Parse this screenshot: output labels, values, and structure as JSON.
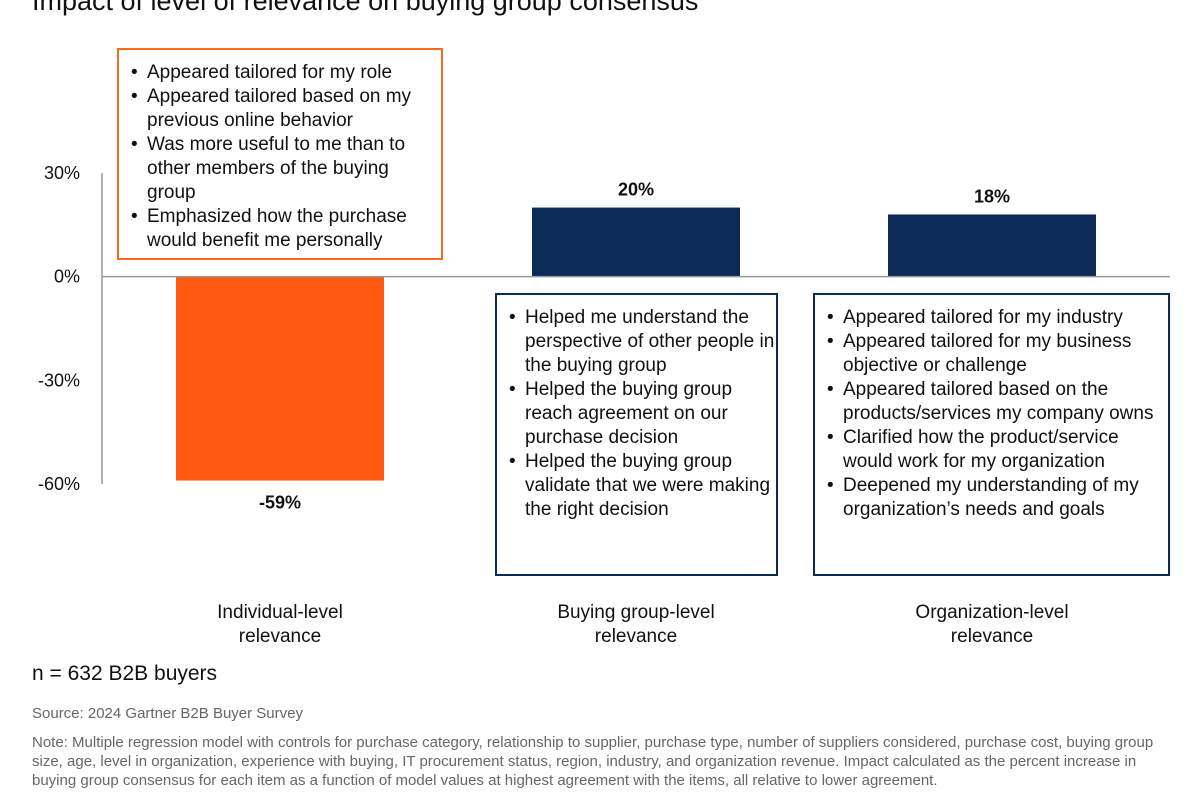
{
  "title": "Impact of level of relevance on buying group consensus",
  "colors": {
    "negative": "#ff5a0f",
    "positive": "#0b2a55",
    "axis": "#999999"
  },
  "chart_data": {
    "type": "bar",
    "categories": [
      [
        "Individual-level",
        "relevance"
      ],
      [
        "Buying group-level",
        "relevance"
      ],
      [
        "Organization-level",
        "relevance"
      ]
    ],
    "values": [
      -59,
      20,
      18
    ],
    "value_labels": [
      "-59%",
      "20%",
      "18%"
    ],
    "yticks": [
      30,
      0,
      -30,
      -60
    ],
    "ytick_labels": [
      "30%",
      "0%",
      "-30%",
      "-60%"
    ],
    "ylim": [
      -60,
      30
    ],
    "grid": false,
    "callouts": [
      {
        "items": [
          "Appeared tailored for my role",
          "Appeared tailored based on my previous online behavior",
          "Was more useful to me than to other members of the buying group",
          "Emphasized how the purchase would benefit me personally"
        ]
      },
      {
        "items": [
          "Helped me understand the perspective of other people in the buying group",
          "Helped the buying group reach agreement on our purchase decision",
          "Helped the buying group validate that we were making the right decision"
        ]
      },
      {
        "items": [
          "Appeared tailored for my industry",
          "Appeared tailored for my business objective or challenge",
          "Appeared tailored based on the products/services my company owns",
          "Clarified how the product/service would work for my organization",
          "Deepened my understanding of my organization’s needs and goals"
        ]
      }
    ]
  },
  "sample": "n = 632 B2B buyers",
  "source": "Source: 2024 Gartner B2B Buyer Survey",
  "note": "Note: Multiple regression model with controls for purchase category, relationship to supplier, purchase type, number of suppliers considered, purchase cost, buying group size, age, level in organization, experience with buying, IT procurement status, region, industry, and organization revenue. Impact calculated as the percent increase in buying group consensus for each item as a function of model values at highest agreement with the items, all relative to lower agreement."
}
